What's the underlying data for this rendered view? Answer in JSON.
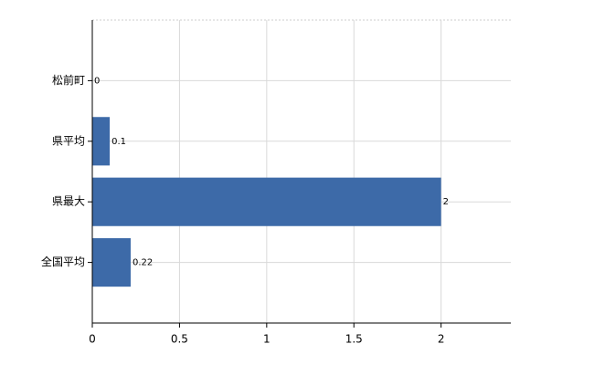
{
  "chart_data": {
    "type": "bar",
    "orientation": "horizontal",
    "categories": [
      "松前町",
      "県平均",
      "県最大",
      "全国平均"
    ],
    "values": [
      0,
      0.1,
      2,
      0.22
    ],
    "color": "#3d6aa8",
    "xlim": [
      0,
      2.4
    ],
    "xticks": [
      0,
      0.5,
      1,
      1.5,
      2
    ],
    "grid": true
  }
}
